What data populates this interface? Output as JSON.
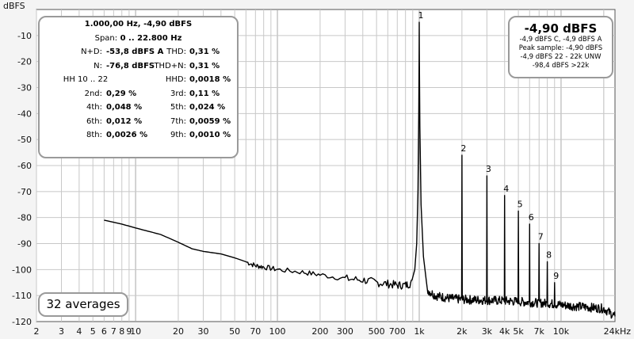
{
  "chart_data": {
    "type": "line",
    "title": "",
    "ylabel": "dBFS",
    "xlabel": "",
    "x_unit": "kHz",
    "x_scale": "log",
    "xlim": [
      2,
      24000
    ],
    "ylim": [
      -120,
      0
    ],
    "y_ticks": [
      -10,
      -20,
      -30,
      -40,
      -50,
      -60,
      -70,
      -80,
      -90,
      -100,
      -110,
      -120
    ],
    "x_ticks": [
      {
        "value": 2,
        "label": "2"
      },
      {
        "value": 3,
        "label": "3"
      },
      {
        "value": 4,
        "label": "4"
      },
      {
        "value": 5,
        "label": "5"
      },
      {
        "value": 6,
        "label": "6"
      },
      {
        "value": 7,
        "label": "7"
      },
      {
        "value": 8,
        "label": "8"
      },
      {
        "value": 9,
        "label": "9"
      },
      {
        "value": 10,
        "label": "10"
      },
      {
        "value": 20,
        "label": "20"
      },
      {
        "value": 30,
        "label": "30"
      },
      {
        "value": 50,
        "label": "50"
      },
      {
        "value": 70,
        "label": "70"
      },
      {
        "value": 100,
        "label": "100"
      },
      {
        "value": 200,
        "label": "200"
      },
      {
        "value": 300,
        "label": "300"
      },
      {
        "value": 500,
        "label": "500"
      },
      {
        "value": 700,
        "label": "700"
      },
      {
        "value": 1000,
        "label": "1k"
      },
      {
        "value": 2000,
        "label": "2k"
      },
      {
        "value": 3000,
        "label": "3k"
      },
      {
        "value": 4000,
        "label": "4k"
      },
      {
        "value": 5000,
        "label": "5k"
      },
      {
        "value": 7000,
        "label": "7k"
      },
      {
        "value": 10000,
        "label": "10k"
      },
      {
        "value": 24000,
        "label": "24kHz"
      }
    ],
    "grid": true,
    "series": [
      {
        "color": "#000000",
        "noise_floor": [
          [
            6,
            -81
          ],
          [
            8,
            -82.5
          ],
          [
            10,
            -84
          ],
          [
            15,
            -86.5
          ],
          [
            20,
            -89.5
          ],
          [
            25,
            -92
          ],
          [
            30,
            -93
          ],
          [
            40,
            -94
          ],
          [
            50,
            -95.5
          ],
          [
            60,
            -97
          ],
          [
            70,
            -98.5
          ],
          [
            80,
            -99
          ],
          [
            100,
            -100
          ],
          [
            150,
            -101
          ],
          [
            200,
            -102
          ],
          [
            300,
            -103.5
          ],
          [
            400,
            -104
          ],
          [
            500,
            -105
          ],
          [
            600,
            -105.5
          ],
          [
            700,
            -106
          ],
          [
            800,
            -106
          ],
          [
            900,
            -105
          ]
        ],
        "fundamental": {
          "freq": 1000,
          "level": -4.9
        },
        "floor_above_fundamental": [
          [
            1150,
            -108
          ],
          [
            1300,
            -110
          ],
          [
            1600,
            -111
          ],
          [
            2000,
            -111.5
          ],
          [
            4000,
            -112
          ],
          [
            8000,
            -113
          ],
          [
            12000,
            -114
          ],
          [
            20000,
            -115
          ],
          [
            24000,
            -118
          ]
        ],
        "harmonics": [
          {
            "order": "1",
            "freq": 1000,
            "level": -4.9
          },
          {
            "order": "2",
            "freq": 2000,
            "level": -56
          },
          {
            "order": "3",
            "freq": 3000,
            "level": -64
          },
          {
            "order": "4",
            "freq": 4000,
            "level": -71.5
          },
          {
            "order": "5",
            "freq": 5000,
            "level": -77.5
          },
          {
            "order": "6",
            "freq": 6000,
            "level": -82.5
          },
          {
            "order": "7",
            "freq": 7000,
            "level": -90
          },
          {
            "order": "8",
            "freq": 8000,
            "level": -97
          },
          {
            "order": "9",
            "freq": 9000,
            "level": -105
          }
        ]
      }
    ]
  },
  "stats_panel": {
    "header": "1.000,00 Hz, -4,90 dBFS",
    "span_label": "Span:",
    "span_value": "0 .. 22.800 Hz",
    "rows": [
      {
        "l1": "N+D:",
        "v1": "-53,8 dBFS A",
        "l2": "THD:",
        "v2": "0,31 %"
      },
      {
        "l1": "N:",
        "v1": "-76,8 dBFS",
        "l2": "THD+N:",
        "v2": "0,31 %"
      }
    ],
    "hh_label": "HH 10 .. 22",
    "hhd_label": "HHD:",
    "hhd_value": "0,0018 %",
    "harmonic_rows": [
      {
        "l1": "2nd:",
        "v1": "0,29 %",
        "l2": "3rd:",
        "v2": "0,11 %"
      },
      {
        "l1": "4th:",
        "v1": "0,048 %",
        "l2": "5th:",
        "v2": "0,024 %"
      },
      {
        "l1": "6th:",
        "v1": "0,012 %",
        "l2": "7th:",
        "v2": "0,0059 %"
      },
      {
        "l1": "8th:",
        "v1": "0,0026 %",
        "l2": "9th:",
        "v2": "0,0010 %"
      }
    ]
  },
  "level_panel": {
    "main": "-4,90 dBFS",
    "lines": [
      "-4,9 dBFS C, -4,9 dBFS A",
      "Peak sample: -4,90 dBFS",
      "-4,9 dBFS 22 - 22k UNW",
      "-98,4 dBFS >22k"
    ]
  },
  "averages": "32 averages",
  "colors": {
    "background": "#f4f4f4",
    "plot_bg": "#ffffff",
    "grid": "#c8c8c8",
    "grid_major": "#a8a8a8",
    "trace": "#000000",
    "panel_border": "#9a9a9a"
  }
}
